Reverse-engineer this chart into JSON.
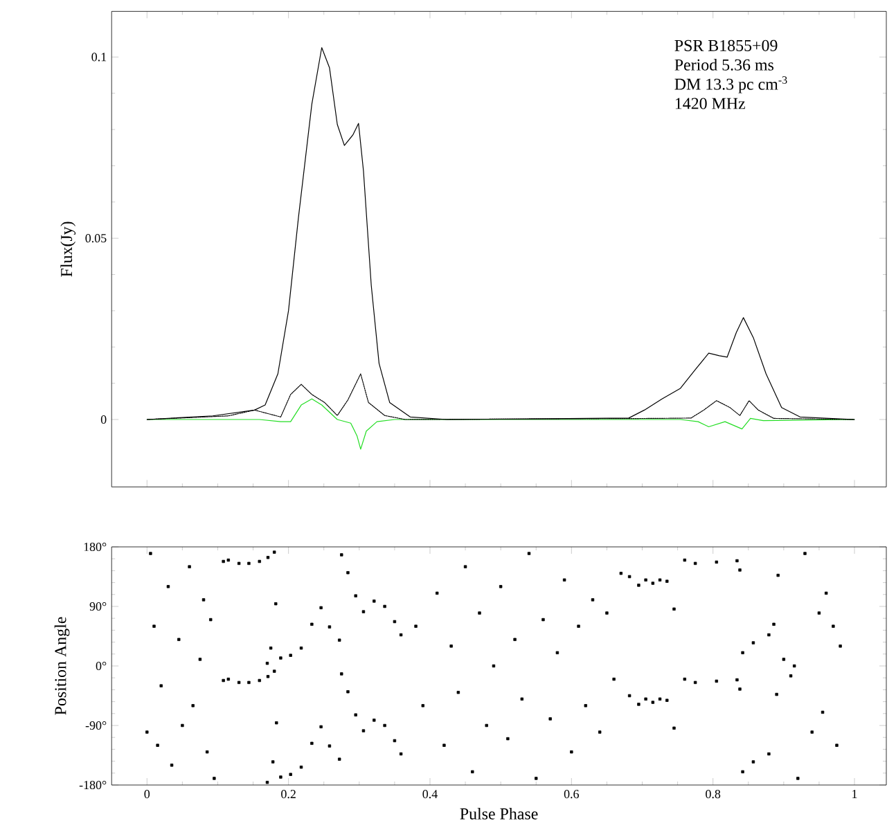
{
  "chart_data": [
    {
      "type": "line",
      "ylabel": "Flux(Jy)",
      "xlim": [
        -0.05,
        1.045
      ],
      "ylim": [
        -0.0186,
        0.1126
      ],
      "xticks": [
        0,
        0.2,
        0.4,
        0.6,
        0.8,
        1
      ],
      "yticks": [
        0,
        0.05,
        0.1
      ],
      "tick_labels": "y",
      "annotations": [
        "PSR B1855+09",
        "Period 5.36 ms",
        "DM 13.3 pc cm$^{-3}$",
        "1420 MHz"
      ],
      "series": [
        {
          "color": "#000000",
          "line_style": "solid",
          "x": [
            0,
            0.093,
            0.152,
            0.167,
            0.185,
            0.2,
            0.214,
            0.233,
            0.247,
            0.258,
            0.269,
            0.279,
            0.291,
            0.299,
            0.306,
            0.317,
            0.328,
            0.343,
            0.372,
            0.424,
            0.681,
            0.703,
            0.728,
            0.754,
            0.776,
            0.794,
            0.809,
            0.82,
            0.833,
            0.843,
            0.857,
            0.875,
            0.897,
            0.923,
            1
          ],
          "values": [
            0,
            0.001,
            0.0026,
            0.004,
            0.0126,
            0.03,
            0.0556,
            0.087,
            0.1026,
            0.097,
            0.0814,
            0.0756,
            0.0785,
            0.0817,
            0.0685,
            0.037,
            0.0155,
            0.0047,
            0.0007,
            0,
            0.0004,
            0.0026,
            0.0057,
            0.0086,
            0.014,
            0.0183,
            0.0176,
            0.0172,
            0.024,
            0.0281,
            0.0226,
            0.0126,
            0.0033,
            0.0007,
            0
          ]
        },
        {
          "color": "#000000",
          "line_style": "dotted",
          "x": [
            0,
            0.115,
            0.152,
            0.189,
            0.203,
            0.218,
            0.233,
            0.251,
            0.269,
            0.284,
            0.302,
            0.313,
            0.336,
            0.365,
            0.717,
            0.769,
            0.787,
            0.805,
            0.824,
            0.838,
            0.851,
            0.864,
            0.886,
            1
          ],
          "values": [
            0,
            0.001,
            0.0026,
            0.0007,
            0.0069,
            0.0097,
            0.0069,
            0.0047,
            0.0011,
            0.0054,
            0.0126,
            0.0047,
            0.0011,
            0,
            0.0003,
            0.0004,
            0.0026,
            0.0052,
            0.0033,
            0.0011,
            0.0052,
            0.0026,
            0.0003,
            0
          ]
        },
        {
          "color": "#22dd22",
          "line_style": "solid",
          "x": [
            0,
            0.159,
            0.189,
            0.203,
            0.218,
            0.233,
            0.247,
            0.269,
            0.288,
            0.297,
            0.302,
            0.31,
            0.325,
            0.35,
            0.754,
            0.779,
            0.794,
            0.817,
            0.841,
            0.853,
            0.871,
            1
          ],
          "values": [
            0,
            0,
            -0.0006,
            -0.0006,
            0.004,
            0.0057,
            0.004,
            0,
            -0.001,
            -0.0046,
            -0.0082,
            -0.0032,
            -0.0006,
            0,
            0,
            -0.0006,
            -0.002,
            -0.0006,
            -0.0026,
            0.0003,
            -0.0003,
            0
          ]
        }
      ]
    },
    {
      "type": "scatter",
      "xlabel": "Pulse Phase",
      "ylabel": "Position Angle",
      "xlim": [
        -0.05,
        1.045
      ],
      "ylim": [
        -180,
        180
      ],
      "xticks": [
        0,
        0.2,
        0.4,
        0.6,
        0.8,
        1
      ],
      "yticks": [
        {
          "value": -180,
          "label": "-180°"
        },
        {
          "value": -90,
          "label": "-90°"
        },
        {
          "value": 0,
          "label": "0°"
        },
        {
          "value": 90,
          "label": "90°"
        },
        {
          "value": 180,
          "label": "180°"
        }
      ],
      "series": [
        {
          "color": "#000000",
          "marker": "square",
          "x": [
            0.108,
            0.115,
            0.13,
            0.144,
            0.159,
            0.171,
            0.18,
            0.108,
            0.115,
            0.13,
            0.144,
            0.159,
            0.171,
            0.18,
            0.17,
            0.175,
            0.182,
            0.17,
            0.178,
            0.183,
            0.189,
            0.203,
            0.218,
            0.233,
            0.246,
            0.258,
            0.272,
            0.189,
            0.203,
            0.218,
            0.233,
            0.246,
            0.258,
            0.272,
            0.275,
            0.284,
            0.295,
            0.306,
            0.321,
            0.336,
            0.35,
            0.359,
            0.275,
            0.284,
            0.295,
            0.306,
            0.321,
            0.336,
            0.35,
            0.359,
            0.682,
            0.695,
            0.705,
            0.715,
            0.725,
            0.735,
            0.682,
            0.695,
            0.705,
            0.715,
            0.725,
            0.735,
            0.745,
            0.76,
            0.775,
            0.805,
            0.834,
            0.838,
            0.745,
            0.76,
            0.775,
            0.805,
            0.834,
            0.838,
            0.842,
            0.857,
            0.879,
            0.886,
            0.892,
            0.842,
            0.857,
            0.879,
            0.89,
            0.005,
            0.01,
            0.02,
            0.03,
            0.035,
            0.045,
            0.05,
            0.06,
            0.065,
            0.075,
            0.08,
            0.085,
            0.09,
            0.095,
            0.0,
            0.015,
            0.38,
            0.39,
            0.41,
            0.42,
            0.43,
            0.44,
            0.45,
            0.46,
            0.47,
            0.48,
            0.49,
            0.5,
            0.51,
            0.52,
            0.53,
            0.54,
            0.55,
            0.56,
            0.57,
            0.58,
            0.59,
            0.6,
            0.61,
            0.62,
            0.63,
            0.64,
            0.65,
            0.66,
            0.67,
            0.9,
            0.91,
            0.915,
            0.92,
            0.93,
            0.94,
            0.95,
            0.955,
            0.96,
            0.97,
            0.975,
            0.98
          ],
          "values": [
            158,
            160,
            155,
            155,
            158,
            164,
            172,
            -22,
            -20,
            -25,
            -25,
            -22,
            -16,
            -8,
            4,
            27,
            94,
            -176,
            -145,
            -86,
            12,
            16,
            27,
            63,
            88,
            59,
            39,
            -168,
            -164,
            -153,
            -117,
            -92,
            -121,
            -141,
            168,
            141,
            106,
            82,
            98,
            90,
            67,
            47,
            -12,
            -39,
            -74,
            -98,
            -82,
            -90,
            -113,
            -133,
            135,
            122,
            130,
            125,
            130,
            128,
            -45,
            -58,
            -50,
            -55,
            -50,
            -52,
            86,
            160,
            155,
            157,
            159,
            145,
            -94,
            -20,
            -25,
            -23,
            -21,
            -35,
            20,
            35,
            47,
            63,
            137,
            -160,
            -145,
            -133,
            -43,
            170,
            60,
            -30,
            120,
            -150,
            40,
            -90,
            150,
            -60,
            10,
            100,
            -130,
            70,
            -170,
            -100,
            -120,
            60,
            -60,
            110,
            -120,
            30,
            -40,
            150,
            -160,
            80,
            -90,
            0,
            120,
            -110,
            40,
            -50,
            170,
            -170,
            70,
            -80,
            20,
            130,
            -130,
            60,
            -60,
            100,
            -100,
            80,
            -20,
            140,
            10,
            -15,
            0,
            -170,
            170,
            -100,
            80,
            -70,
            110,
            60,
            -120,
            30
          ]
        }
      ]
    }
  ]
}
